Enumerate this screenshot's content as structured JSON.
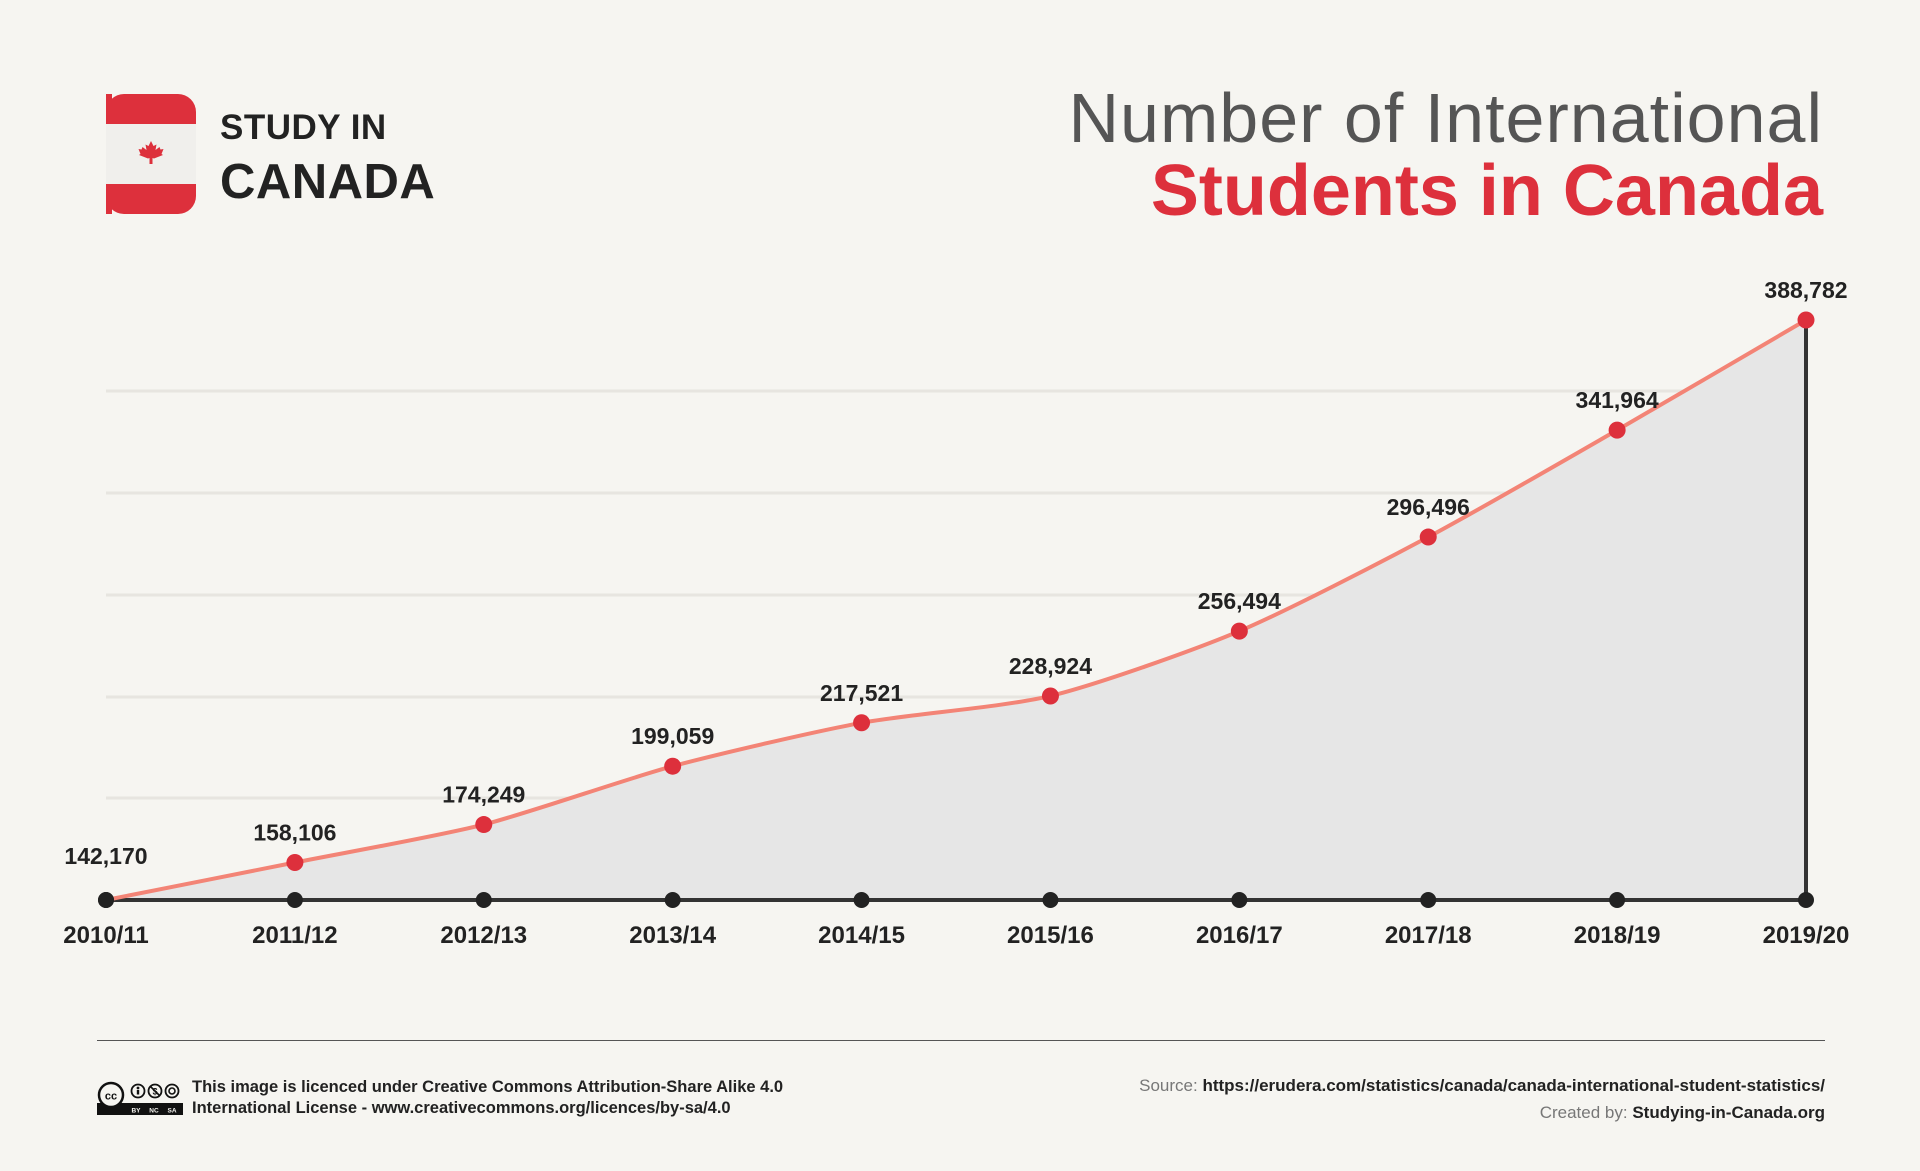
{
  "logo": {
    "line1": "STUDY IN",
    "line2": "CANADA",
    "icon": "canada-flag-icon",
    "colors": {
      "red": "#dd303c",
      "white": "#f0efec"
    }
  },
  "title": {
    "line1": "Number of International",
    "line2": "Students in Canada"
  },
  "colors": {
    "accent": "#dd303c",
    "line": "#f38476",
    "area": "#e6e6e6",
    "axis": "#333333",
    "text": "#222222",
    "muted": "#777777"
  },
  "chart_data": {
    "type": "area",
    "categories": [
      "2010/11",
      "2011/12",
      "2012/13",
      "2013/14",
      "2014/15",
      "2015/16",
      "2016/17",
      "2017/18",
      "2018/19",
      "2019/20"
    ],
    "values": [
      142170,
      158106,
      174249,
      199059,
      217521,
      228924,
      256494,
      296496,
      341964,
      388782
    ],
    "value_labels": [
      "142,170",
      "158,106",
      "174,249",
      "199,059",
      "217,521",
      "228,924",
      "256,494",
      "296,496",
      "341,964",
      "388,782"
    ],
    "title": "Number of International Students in Canada",
    "xlabel": "",
    "ylabel": "",
    "grid": true,
    "legend": "none"
  },
  "footer": {
    "license_line1": "This image is licenced under Creative Commons Attribution-Share Alike 4.0",
    "license_line2": "International License - www.creativecommons.org/licences/by-sa/4.0",
    "source_label": "Source:",
    "source_url": "https://erudera.com/statistics/canada/canada-international-student-statistics/",
    "created_label": "Created by:",
    "created_by": "Studying-in-Canada.org",
    "cc_icon": "creative-commons-by-nc-sa-icon",
    "cc_badge_text": [
      "BY",
      "NC",
      "SA"
    ]
  }
}
